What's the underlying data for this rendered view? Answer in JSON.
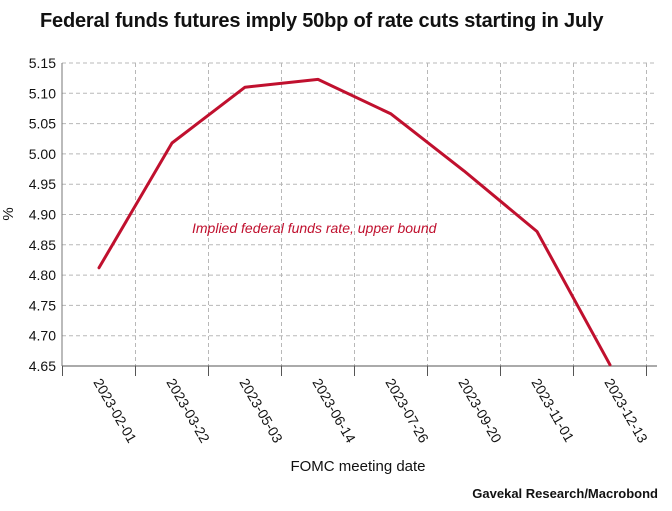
{
  "chart_data": {
    "type": "line",
    "title": "Federal funds futures imply 50bp of rate cuts starting in July",
    "source": "Gavekal Research/Macrobond",
    "xlabel": "FOMC meeting date",
    "ylabel": "%",
    "ylim": [
      4.65,
      5.15
    ],
    "yticks": [
      "4.65",
      "4.70",
      "4.75",
      "4.80",
      "4.85",
      "4.90",
      "4.95",
      "5.00",
      "5.05",
      "5.10",
      "5.15"
    ],
    "x": [
      "2023-02-01",
      "2023-03-22",
      "2023-05-03",
      "2023-06-14",
      "2023-07-26",
      "2023-09-20",
      "2023-11-01",
      "2023-12-13"
    ],
    "series": [
      {
        "name": "Implied federal funds rate, upper bound",
        "color": "#c0102e",
        "values": [
          4.812,
          5.018,
          5.11,
          5.123,
          5.066,
          4.972,
          4.872,
          4.652
        ]
      }
    ],
    "annotation": "Implied federal funds rate, upper bound",
    "grid": true
  }
}
